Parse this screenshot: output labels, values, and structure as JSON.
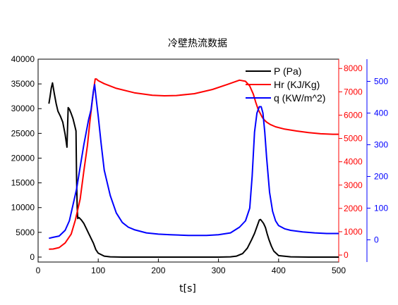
{
  "chart_data": {
    "type": "line",
    "title": "冷壁热流数据",
    "xlabel": "t[s]",
    "xlim": [
      0,
      500
    ],
    "x_ticks": [
      0,
      100,
      200,
      300,
      400,
      500
    ],
    "axes": {
      "left": {
        "range": [
          -1000,
          40000
        ],
        "ticks": [
          0,
          5000,
          10000,
          15000,
          20000,
          25000,
          30000,
          35000,
          40000
        ],
        "color": "#000000"
      },
      "right1": {
        "range": [
          -300,
          8400
        ],
        "ticks": [
          0,
          1000,
          2000,
          3000,
          4000,
          5000,
          6000,
          7000,
          8000
        ],
        "color": "#ff0000"
      },
      "right2": {
        "range": [
          -70,
          570
        ],
        "ticks": [
          0,
          100,
          200,
          300,
          400,
          500
        ],
        "color": "#0000ff"
      }
    },
    "legend_position": "top-right",
    "series": [
      {
        "name": "P (Pa)",
        "axis": "left",
        "color": "#000000",
        "x": [
          18,
          20,
          22,
          24,
          27,
          30,
          33,
          37,
          41,
          45,
          48,
          50,
          52,
          55,
          58,
          61,
          63,
          64,
          65,
          66,
          68,
          72,
          76,
          80,
          84,
          88,
          92,
          96,
          100,
          110,
          120,
          140,
          200,
          250,
          300,
          320,
          330,
          340,
          348,
          355,
          360,
          365,
          368,
          370,
          372,
          375,
          378,
          381,
          384,
          388,
          392,
          400,
          420,
          450,
          470,
          490,
          500
        ],
        "y": [
          31000,
          32500,
          34200,
          35200,
          33000,
          31000,
          29500,
          28500,
          27300,
          24800,
          22200,
          30200,
          29900,
          29000,
          28000,
          26500,
          25500,
          16000,
          10000,
          7800,
          8000,
          7500,
          6800,
          5800,
          4800,
          3800,
          2800,
          1500,
          800,
          200,
          50,
          0,
          0,
          0,
          0,
          50,
          200,
          700,
          1800,
          3500,
          4800,
          6500,
          7500,
          7600,
          7300,
          6800,
          6000,
          4700,
          3500,
          2200,
          1200,
          300,
          50,
          0,
          0,
          0,
          0
        ]
      },
      {
        "name": "Hr (KJ/Kg)",
        "axis": "right1",
        "color": "#ff0000",
        "x": [
          18,
          25,
          35,
          45,
          55,
          62,
          70,
          76,
          82,
          86,
          90,
          93,
          95,
          97,
          100,
          110,
          130,
          160,
          190,
          210,
          230,
          260,
          290,
          315,
          335,
          345,
          352,
          358,
          362,
          366,
          370,
          373,
          376,
          380,
          386,
          395,
          410,
          430,
          450,
          470,
          490,
          500
        ],
        "y": [
          250,
          260,
          320,
          520,
          900,
          1500,
          2400,
          3600,
          4700,
          5700,
          6600,
          7200,
          7550,
          7550,
          7480,
          7350,
          7150,
          6960,
          6850,
          6830,
          6840,
          6920,
          7100,
          7320,
          7500,
          7450,
          7250,
          6900,
          6550,
          6250,
          6050,
          5900,
          5800,
          5700,
          5600,
          5500,
          5400,
          5320,
          5250,
          5200,
          5180,
          5180
        ]
      },
      {
        "name": "q (KW/m^2)",
        "axis": "right2",
        "color": "#0000ff",
        "x": [
          18,
          25,
          35,
          45,
          52,
          58,
          64,
          70,
          76,
          80,
          84,
          88,
          90,
          92,
          94,
          96,
          100,
          105,
          110,
          120,
          130,
          140,
          150,
          160,
          180,
          200,
          220,
          250,
          280,
          300,
          320,
          335,
          345,
          352,
          356,
          360,
          364,
          368,
          371,
          374,
          377,
          380,
          385,
          390,
          395,
          400,
          410,
          420,
          440,
          460,
          480,
          500
        ],
        "y": [
          5,
          8,
          12,
          30,
          60,
          110,
          160,
          230,
          300,
          340,
          380,
          410,
          440,
          470,
          490,
          455,
          390,
          300,
          220,
          140,
          85,
          55,
          40,
          32,
          22,
          18,
          16,
          14,
          14,
          16,
          22,
          40,
          60,
          100,
          200,
          340,
          400,
          420,
          420,
          400,
          340,
          260,
          150,
          90,
          60,
          45,
          35,
          30,
          25,
          22,
          20,
          20
        ]
      }
    ]
  }
}
